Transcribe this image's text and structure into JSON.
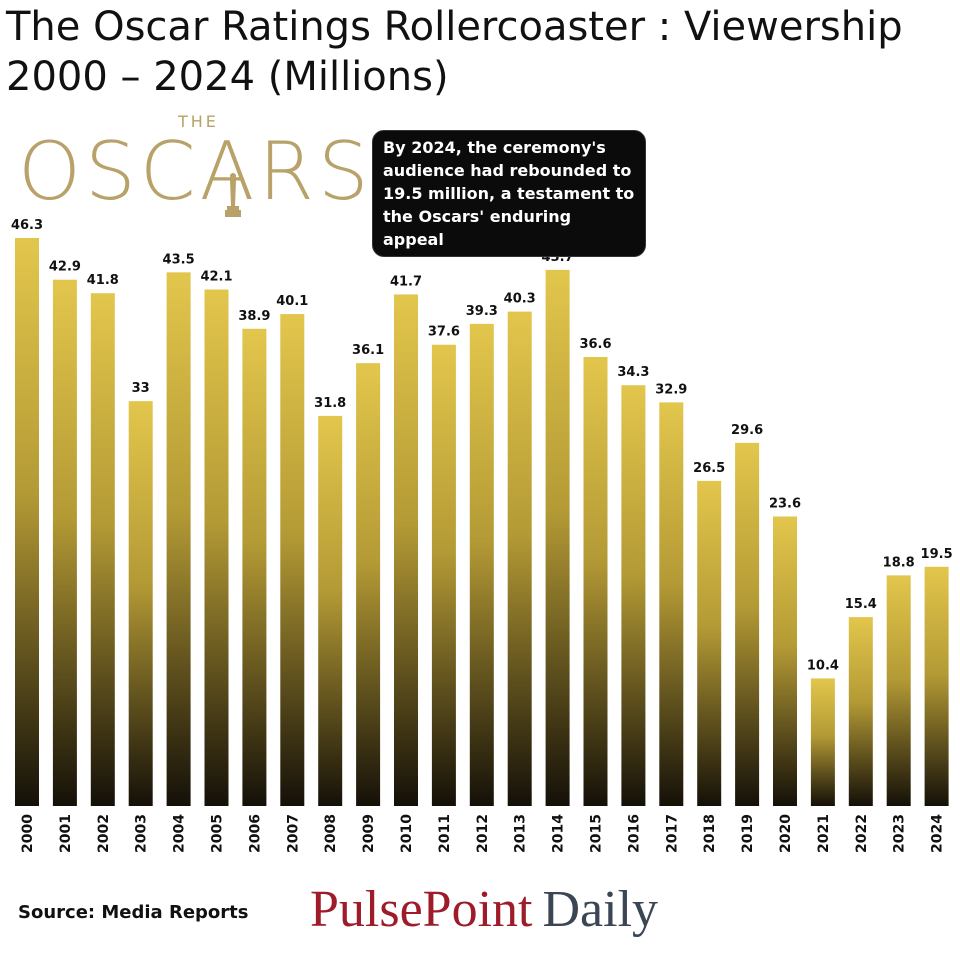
{
  "title": "The Oscar Ratings Rollercoaster : Viewership 2000 – 2024 (Millions)",
  "logo": {
    "small": "THE",
    "word": "OSCARS"
  },
  "annotation": "By 2024, the ceremony's audience had rebounded to 19.5 million, a testament to the Oscars' enduring appeal",
  "source": "Source: Media Reports",
  "brand": {
    "part1": "PulsePoint",
    "part2": "Daily"
  },
  "colors": {
    "bar_top": "#e2c64c",
    "bar_bottom": "#141008",
    "logo_gold": "#b8a26a",
    "brand_red": "#9e1b2a",
    "brand_gray": "#3b4654"
  },
  "chart_data": {
    "type": "bar",
    "title": "The Oscar Ratings Rollercoaster : Viewership 2000 – 2024 (Millions)",
    "xlabel": "",
    "ylabel": "",
    "categories": [
      "2000",
      "2001",
      "2002",
      "2003",
      "2004",
      "2005",
      "2006",
      "2007",
      "2008",
      "2009",
      "2010",
      "2011",
      "2012",
      "2013",
      "2014",
      "2015",
      "2016",
      "2017",
      "2018",
      "2019",
      "2020",
      "2021",
      "2022",
      "2023",
      "2024"
    ],
    "values": [
      46.3,
      42.9,
      41.8,
      33,
      43.5,
      42.1,
      38.9,
      40.1,
      31.8,
      36.1,
      41.7,
      37.6,
      39.3,
      40.3,
      43.7,
      36.6,
      34.3,
      32.9,
      26.5,
      29.6,
      23.6,
      10.4,
      15.4,
      18.8,
      19.5
    ],
    "labels": [
      "46.3",
      "42.9",
      "41.8",
      "33",
      "43.5",
      "42.1",
      "38.9",
      "40.1",
      "31.8",
      "36.1",
      "41.7",
      "37.6",
      "39.3",
      "40.3",
      "43.7",
      "36.6",
      "34.3",
      "32.9",
      "26.5",
      "29.6",
      "23.6",
      "10.4",
      "15.4",
      "18.8",
      "19.5"
    ],
    "ylim": [
      0,
      46.3
    ],
    "grid": false,
    "legend": "none"
  }
}
